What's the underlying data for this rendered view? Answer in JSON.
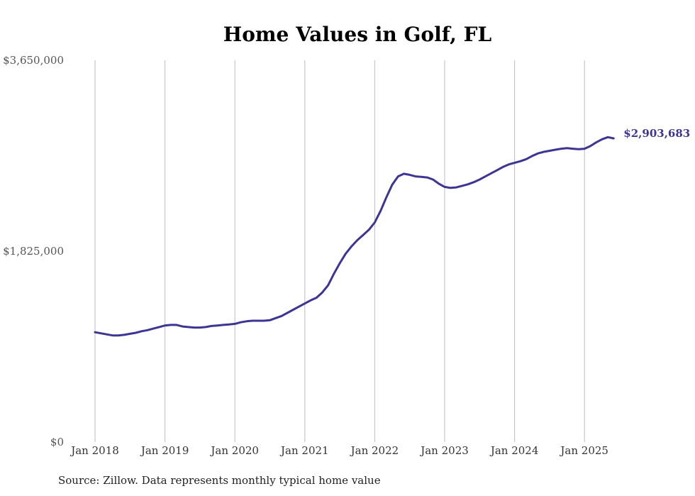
{
  "chart_data": {
    "type": "line",
    "title": "Home Values in Golf, FL",
    "xlabel": "",
    "ylabel": "",
    "ylim": [
      0,
      3650000
    ],
    "y_ticks": [
      "$0",
      "$1,825,000",
      "$3,650,000"
    ],
    "x_ticks": [
      "Jan 2018",
      "Jan 2019",
      "Jan 2020",
      "Jan 2021",
      "Jan 2022",
      "Jan 2023",
      "Jan 2024",
      "Jan 2025"
    ],
    "grid": "vertical",
    "line_color": "#3d3593",
    "end_label": "$2,903,683",
    "series": [
      {
        "name": "",
        "points": [
          [
            "2018-01",
            1050000
          ],
          [
            "2018-02",
            1040000
          ],
          [
            "2018-03",
            1030000
          ],
          [
            "2018-04",
            1020000
          ],
          [
            "2018-05",
            1020000
          ],
          [
            "2018-06",
            1025000
          ],
          [
            "2018-07",
            1035000
          ],
          [
            "2018-08",
            1045000
          ],
          [
            "2018-09",
            1060000
          ],
          [
            "2018-10",
            1070000
          ],
          [
            "2018-11",
            1085000
          ],
          [
            "2018-12",
            1100000
          ],
          [
            "2019-01",
            1115000
          ],
          [
            "2019-02",
            1120000
          ],
          [
            "2019-03",
            1120000
          ],
          [
            "2019-04",
            1105000
          ],
          [
            "2019-05",
            1100000
          ],
          [
            "2019-06",
            1095000
          ],
          [
            "2019-07",
            1095000
          ],
          [
            "2019-08",
            1100000
          ],
          [
            "2019-09",
            1110000
          ],
          [
            "2019-10",
            1115000
          ],
          [
            "2019-11",
            1120000
          ],
          [
            "2019-12",
            1125000
          ],
          [
            "2020-01",
            1130000
          ],
          [
            "2020-02",
            1145000
          ],
          [
            "2020-03",
            1155000
          ],
          [
            "2020-04",
            1160000
          ],
          [
            "2020-05",
            1160000
          ],
          [
            "2020-06",
            1160000
          ],
          [
            "2020-07",
            1165000
          ],
          [
            "2020-08",
            1185000
          ],
          [
            "2020-09",
            1205000
          ],
          [
            "2020-10",
            1235000
          ],
          [
            "2020-11",
            1265000
          ],
          [
            "2020-12",
            1295000
          ],
          [
            "2021-01",
            1325000
          ],
          [
            "2021-02",
            1355000
          ],
          [
            "2021-03",
            1380000
          ],
          [
            "2021-04",
            1430000
          ],
          [
            "2021-05",
            1500000
          ],
          [
            "2021-06",
            1610000
          ],
          [
            "2021-07",
            1710000
          ],
          [
            "2021-08",
            1800000
          ],
          [
            "2021-09",
            1870000
          ],
          [
            "2021-10",
            1930000
          ],
          [
            "2021-11",
            1980000
          ],
          [
            "2021-12",
            2030000
          ],
          [
            "2022-01",
            2100000
          ],
          [
            "2022-02",
            2210000
          ],
          [
            "2022-03",
            2340000
          ],
          [
            "2022-04",
            2460000
          ],
          [
            "2022-05",
            2540000
          ],
          [
            "2022-06",
            2565000
          ],
          [
            "2022-07",
            2555000
          ],
          [
            "2022-08",
            2540000
          ],
          [
            "2022-09",
            2535000
          ],
          [
            "2022-10",
            2530000
          ],
          [
            "2022-11",
            2510000
          ],
          [
            "2022-12",
            2470000
          ],
          [
            "2023-01",
            2440000
          ],
          [
            "2023-02",
            2430000
          ],
          [
            "2023-03",
            2435000
          ],
          [
            "2023-04",
            2450000
          ],
          [
            "2023-05",
            2465000
          ],
          [
            "2023-06",
            2485000
          ],
          [
            "2023-07",
            2510000
          ],
          [
            "2023-08",
            2540000
          ],
          [
            "2023-09",
            2570000
          ],
          [
            "2023-10",
            2600000
          ],
          [
            "2023-11",
            2630000
          ],
          [
            "2023-12",
            2655000
          ],
          [
            "2024-01",
            2670000
          ],
          [
            "2024-02",
            2685000
          ],
          [
            "2024-03",
            2705000
          ],
          [
            "2024-04",
            2735000
          ],
          [
            "2024-05",
            2760000
          ],
          [
            "2024-06",
            2775000
          ],
          [
            "2024-07",
            2785000
          ],
          [
            "2024-08",
            2795000
          ],
          [
            "2024-09",
            2805000
          ],
          [
            "2024-10",
            2810000
          ],
          [
            "2024-11",
            2805000
          ],
          [
            "2024-12",
            2800000
          ],
          [
            "2025-01",
            2805000
          ],
          [
            "2025-02",
            2830000
          ],
          [
            "2025-03",
            2865000
          ],
          [
            "2025-04",
            2895000
          ],
          [
            "2025-05",
            2915000
          ],
          [
            "2025-06",
            2903683
          ]
        ]
      }
    ]
  },
  "source_note": "Source: Zillow. Data represents monthly typical home value"
}
